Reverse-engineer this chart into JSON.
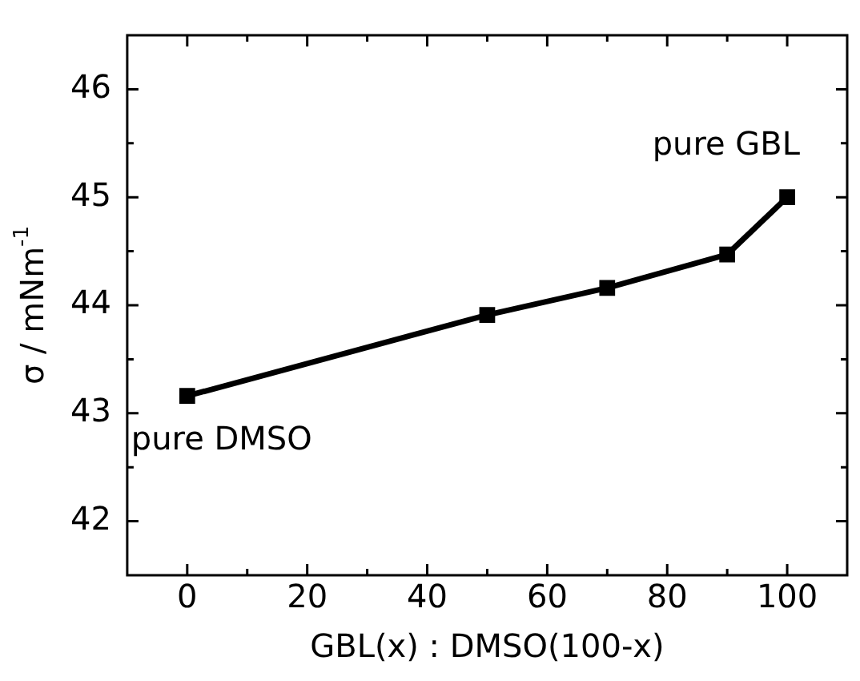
{
  "chart_data": {
    "type": "line",
    "xlabel": "GBL(x) : DMSO(100-x)",
    "ylabel": "σ / mNm$^{-1}$",
    "x": [
      0,
      50,
      70,
      90,
      100
    ],
    "series": [
      {
        "color": "#000000",
        "values": [
          43.16,
          43.91,
          44.16,
          44.47,
          45.0
        ]
      }
    ],
    "xlim": [
      -10,
      110
    ],
    "xticks": [
      0,
      20,
      40,
      60,
      80,
      100
    ],
    "ylim": [
      41.5,
      46.5
    ],
    "yticks": [
      42,
      43,
      44,
      45,
      46
    ],
    "grid": false,
    "legend": false,
    "marker": "square",
    "line_style": "solid",
    "annotations": [
      {
        "text": "pure DMSO",
        "x": 0,
        "y": 43.16
      },
      {
        "text": "pure GBL",
        "x": 100,
        "y": 45.0
      }
    ]
  }
}
